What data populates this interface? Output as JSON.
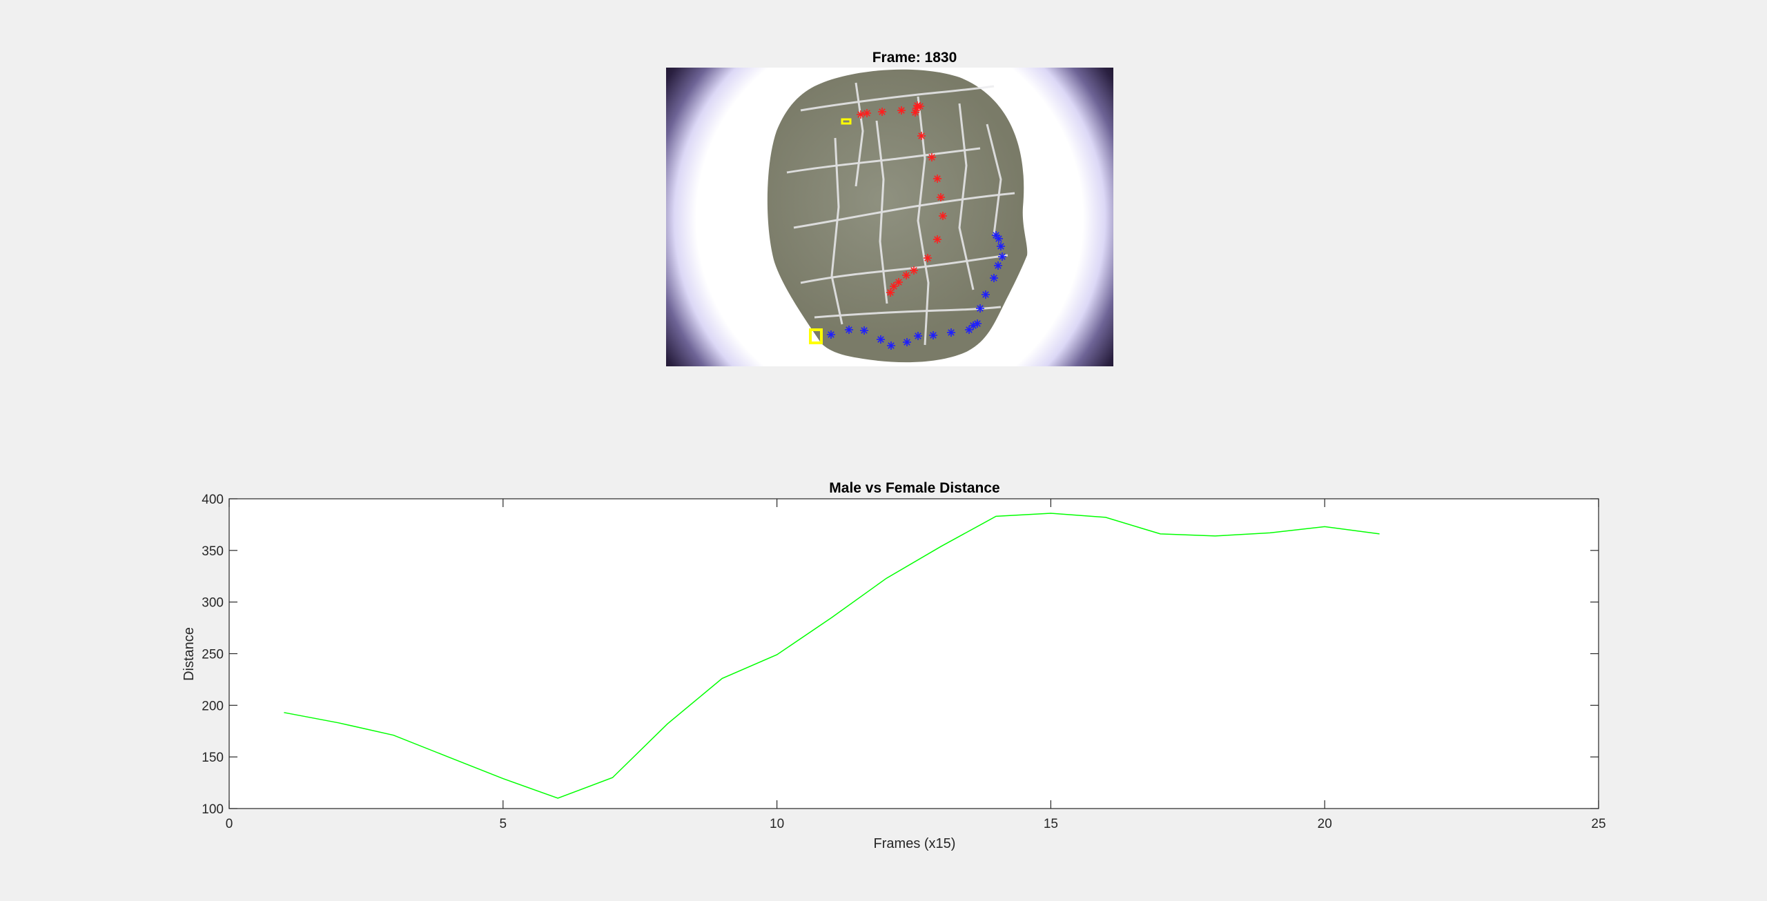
{
  "figure": {
    "background": "#f0f0f0"
  },
  "image_panel": {
    "title": "Frame: 1830",
    "description_colors": {
      "vignette_dark": "#1e1530",
      "vignette_halo": "#d8d4f4",
      "leaf": "#8c8d78",
      "vein": "#e7e7ea",
      "male_marker": "#ff1e1e",
      "female_marker": "#1e1eff",
      "box": "#ffff00"
    },
    "red_track": [
      [
        1247,
        166
      ],
      [
        1256,
        164
      ],
      [
        1278,
        162
      ],
      [
        1306,
        160
      ],
      [
        1326,
        163
      ],
      [
        1328,
        157
      ],
      [
        1333,
        154
      ],
      [
        1329,
        153
      ],
      [
        1335,
        197
      ],
      [
        1350,
        228
      ],
      [
        1358,
        259
      ],
      [
        1363,
        286
      ],
      [
        1366,
        313
      ],
      [
        1358,
        347
      ],
      [
        1344,
        374
      ],
      [
        1324,
        392
      ],
      [
        1313,
        399
      ],
      [
        1302,
        409
      ],
      [
        1295,
        415
      ],
      [
        1290,
        424
      ]
    ],
    "blue_track": [
      [
        1204,
        485
      ],
      [
        1230,
        478
      ],
      [
        1252,
        479
      ],
      [
        1276,
        492
      ],
      [
        1291,
        501
      ],
      [
        1314,
        496
      ],
      [
        1330,
        487
      ],
      [
        1352,
        486
      ],
      [
        1378,
        482
      ],
      [
        1404,
        478
      ],
      [
        1410,
        472
      ],
      [
        1416,
        469
      ],
      [
        1420,
        447
      ],
      [
        1428,
        427
      ],
      [
        1440,
        403
      ],
      [
        1446,
        385
      ],
      [
        1452,
        372
      ],
      [
        1450,
        357
      ],
      [
        1447,
        346
      ],
      [
        1443,
        341
      ]
    ],
    "male_box": [
      1220,
      173,
      1232,
      179
    ],
    "female_box": [
      1174,
      478,
      1190,
      497
    ]
  },
  "chart_data": {
    "type": "line",
    "title": "Male vs Female Distance",
    "xlabel": "Frames (x15)",
    "ylabel": "Distance",
    "xlim": [
      0,
      25
    ],
    "ylim": [
      100,
      400
    ],
    "xticks": [
      0,
      5,
      10,
      15,
      20,
      25
    ],
    "yticks": [
      100,
      150,
      200,
      250,
      300,
      350,
      400
    ],
    "grid": false,
    "legend": "none",
    "series": [
      {
        "color": "#00ff00",
        "x": [
          1,
          2,
          3,
          4,
          5,
          6,
          7,
          8,
          9,
          10,
          11,
          12,
          13,
          14,
          15,
          16,
          17,
          18,
          19,
          20,
          21
        ],
        "y": [
          193,
          183,
          171,
          150,
          129,
          110,
          130,
          182,
          226,
          249,
          285,
          323,
          354,
          383,
          386,
          382,
          366,
          364,
          367,
          373,
          366
        ]
      }
    ]
  }
}
